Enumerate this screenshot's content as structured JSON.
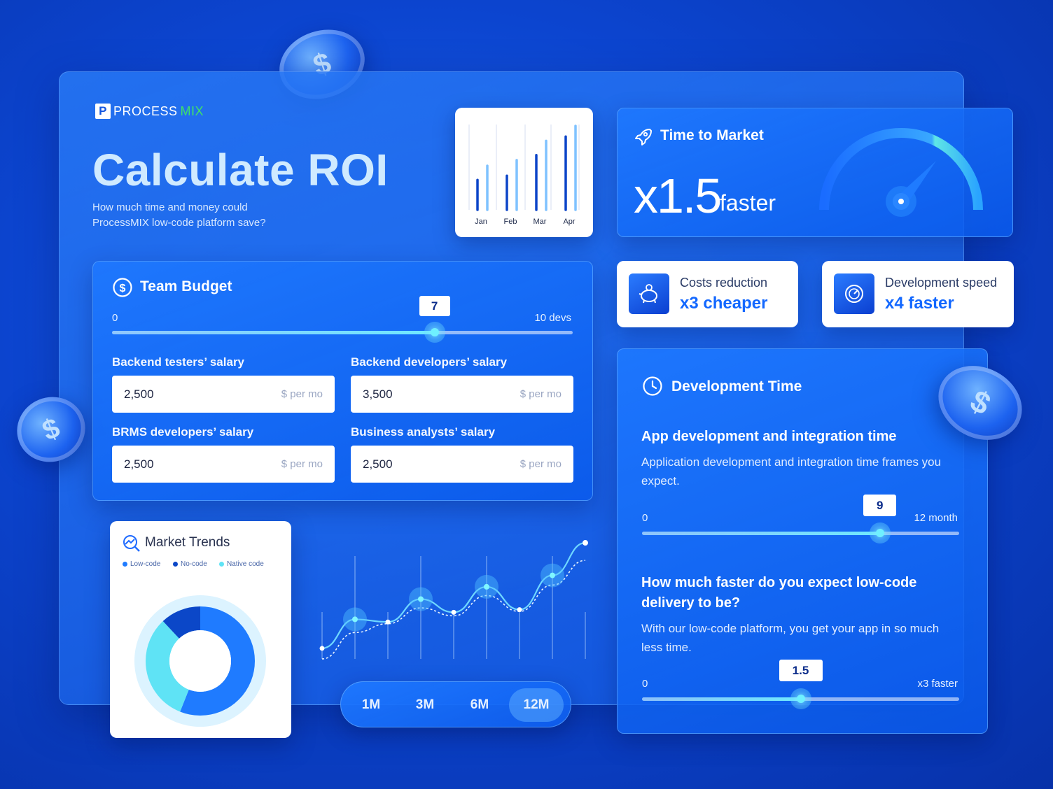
{
  "brand": {
    "logo_mark": "P",
    "logo_part1": "PROCESS",
    "logo_part2": "MIX"
  },
  "hero": {
    "title": "Calculate ROI",
    "subtitle": "How much time and money could ProcessMIX low-code platform save?"
  },
  "mini_chart": {
    "chart_data": {
      "type": "bar",
      "categories": [
        "Jan",
        "Feb",
        "Mar",
        "Apr"
      ],
      "series": [
        {
          "values": [
            42,
            48,
            77,
            103
          ]
        },
        {
          "values": [
            62,
            70,
            97,
            118
          ]
        }
      ],
      "ylim": [
        0,
        120
      ],
      "grid": true
    }
  },
  "time_to_market": {
    "title": "Time to Market",
    "value": "x1.5",
    "unit": "faster",
    "icon": "rocket-icon",
    "gauge_fraction": 0.7
  },
  "stats": [
    {
      "label": "Costs reduction",
      "value": "x3 cheaper",
      "icon": "piggy-bank-icon"
    },
    {
      "label": "Development speed",
      "value": "x4 faster",
      "icon": "speedometer-icon"
    }
  ],
  "team_budget": {
    "title": "Team Budget",
    "icon": "dollar-icon",
    "slider": {
      "min_label": "0",
      "max_label": "10 devs",
      "value": "7",
      "min": 0,
      "max": 10,
      "current": 7
    },
    "fields": [
      {
        "label": "Backend testers’ salary",
        "value": "2,500",
        "unit": "$ per mo"
      },
      {
        "label": "Backend developers’ salary",
        "value": "3,500",
        "unit": "$ per mo"
      },
      {
        "label": "BRMS developers’ salary",
        "value": "2,500",
        "unit": "$ per mo"
      },
      {
        "label": "Business analysts’ salary",
        "value": "2,500",
        "unit": "$ per mo"
      }
    ]
  },
  "market_trends": {
    "title": "Market Trends",
    "legend": [
      {
        "name": "Low-code",
        "color": "#1f7bff"
      },
      {
        "name": "No-code",
        "color": "#0b47c8"
      },
      {
        "name": "Native code",
        "color": "#5fe3f5"
      }
    ],
    "donut": [
      {
        "name": "Low-code",
        "value": 56,
        "color": "#1f7bff"
      },
      {
        "name": "Native code",
        "value": 32,
        "color": "#5fe3f5"
      },
      {
        "name": "No-code",
        "value": 12,
        "color": "#0b47c8"
      }
    ]
  },
  "trend_line": {
    "chart_data": {
      "type": "line",
      "x": [
        0,
        1,
        2,
        3,
        4,
        5,
        6,
        7,
        8
      ],
      "series": [
        {
          "values": [
            12,
            45,
            42,
            68,
            53,
            82,
            56,
            95,
            132
          ]
        },
        {
          "values": [
            0,
            30,
            40,
            58,
            49,
            72,
            54,
            84,
            112
          ]
        }
      ],
      "ylim": [
        0,
        140
      ],
      "grid": true
    }
  },
  "periods": {
    "items": [
      "1M",
      "3M",
      "6M",
      "12M"
    ],
    "active": "12M"
  },
  "development_time": {
    "title": "Development Time",
    "icon": "clock-icon",
    "q1": {
      "title": "App development and integration time",
      "desc": "Application development and integration time frames you expect.",
      "slider": {
        "min_label": "0",
        "max_label": "12 month",
        "value": "9",
        "min": 0,
        "max": 12,
        "current": 9
      }
    },
    "q2": {
      "title": "How much faster do you expect low-code delivery to be?",
      "desc": "With our low-code platform, you get your app in so much less time.",
      "slider": {
        "min_label": "0",
        "max_label": "x3 faster",
        "value": "1.5",
        "min": 0,
        "max": 3,
        "current": 1.5
      }
    }
  },
  "coin_symbol": "$"
}
